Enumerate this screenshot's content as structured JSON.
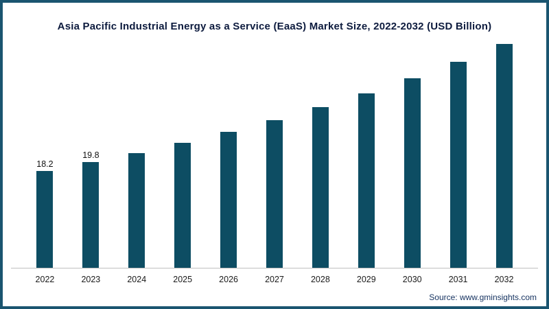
{
  "source_text": "Source: www.gminsights.com",
  "colors": {
    "bar": "#0d4d63",
    "frame_border": "#1b5570",
    "title_text": "#0d1b3e",
    "axis_line": "#bfbfbf",
    "tick_text": "#1a1a1a",
    "source_text": "#14315f"
  },
  "chart_data": {
    "type": "bar",
    "title": "Asia Pacific Industrial Energy as a Service (EaaS) Market Size, 2022-2032 (USD Billion)",
    "categories": [
      "2022",
      "2023",
      "2024",
      "2025",
      "2026",
      "2027",
      "2028",
      "2029",
      "2030",
      "2031",
      "2032"
    ],
    "values": [
      18.2,
      19.8,
      21.5,
      23.4,
      25.5,
      27.7,
      30.1,
      32.7,
      35.5,
      38.6,
      42.0
    ],
    "data_labels": [
      "18.2",
      "19.8",
      "",
      "",
      "",
      "",
      "",
      "",
      "",
      "",
      ""
    ],
    "xlabel": "",
    "ylabel": "",
    "ylim": [
      0,
      43
    ],
    "grid": false,
    "legend": false,
    "y_axis_shown": false,
    "x_axis_shown": true
  }
}
